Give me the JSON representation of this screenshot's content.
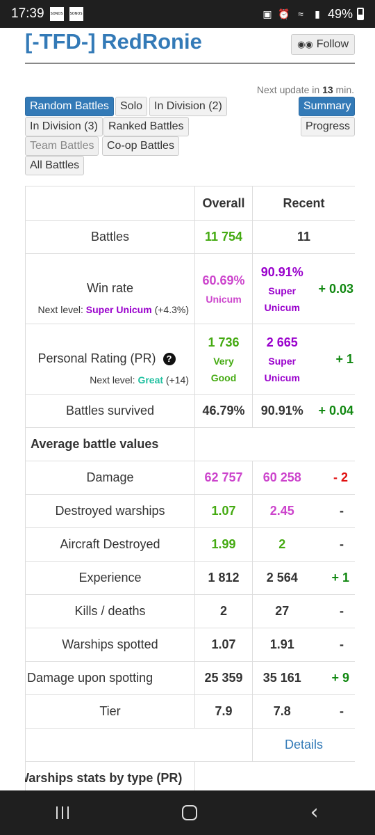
{
  "status_bar": {
    "time": "17:39",
    "battery": "49%",
    "sonos_label": "SONOS"
  },
  "header": {
    "title": "[-TFD-] RedRonie",
    "follow_label": "Follow"
  },
  "update": {
    "prefix": "Next update in",
    "minutes": "13",
    "suffix": "min."
  },
  "filters": {
    "random_battles": "Random Battles",
    "solo": "Solo",
    "in_division_2": "In Division (2)",
    "in_division_3": "In Division (3)",
    "ranked_battles": "Ranked Battles",
    "team_battles": "Team Battles",
    "coop_battles": "Co-op Battles",
    "all_battles": "All Battles"
  },
  "views": {
    "summary": "Summary",
    "progress": "Progress"
  },
  "table": {
    "col_overall": "Overall",
    "col_recent": "Recent",
    "battles": {
      "label": "Battles",
      "overall": "11 754",
      "recent": "11"
    },
    "win_rate": {
      "label": "Win rate",
      "overall": "60.69%",
      "overall_rank": "Unicum",
      "recent": "90.91%",
      "recent_rank_1": "Super",
      "recent_rank_2": "Unicum",
      "diff": "+ 0.03",
      "next_prefix": "Next level:",
      "next_level": "Super Unicum",
      "next_delta": "(+4.3%)"
    },
    "pr": {
      "label": "Personal Rating (PR)",
      "overall": "1 736",
      "overall_rank_1": "Very",
      "overall_rank_2": "Good",
      "recent": "2 665",
      "recent_rank_1": "Super",
      "recent_rank_2": "Unicum",
      "diff": "+ 1",
      "next_prefix": "Next level:",
      "next_level": "Great",
      "next_delta": "(+14)"
    },
    "survived": {
      "label": "Battles survived",
      "overall": "46.79%",
      "recent": "90.91%",
      "diff": "+ 0.04"
    },
    "avg_section": "Average battle values",
    "damage": {
      "label": "Damage",
      "overall": "62 757",
      "recent": "60 258",
      "diff": "- 2"
    },
    "destroyed_warships": {
      "label": "Destroyed warships",
      "overall": "1.07",
      "recent": "2.45",
      "diff": "-"
    },
    "aircraft_destroyed": {
      "label": "Aircraft Destroyed",
      "overall": "1.99",
      "recent": "2",
      "diff": "-"
    },
    "experience": {
      "label": "Experience",
      "overall": "1 812",
      "recent": "2 564",
      "diff": "+ 1"
    },
    "kills_deaths": {
      "label": "Kills / deaths",
      "overall": "2",
      "recent": "27",
      "diff": "-"
    },
    "warships_spotted": {
      "label": "Warships spotted",
      "overall": "1.07",
      "recent": "1.91",
      "diff": "-"
    },
    "damage_spotting": {
      "label": "Damage upon spotting",
      "overall": "25 359",
      "recent": "35 161",
      "diff": "+ 9"
    },
    "tier": {
      "label": "Tier",
      "overall": "7.9",
      "recent": "7.8",
      "diff": "-"
    },
    "details": "Details",
    "type_section": "Warships stats by type (PR)"
  }
}
